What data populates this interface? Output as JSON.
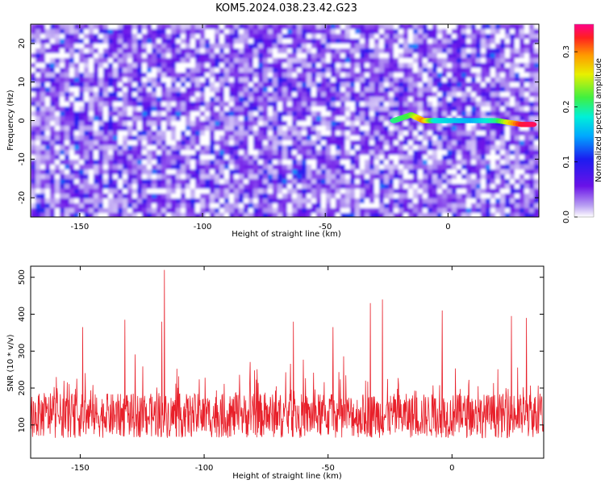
{
  "title": "KOM5.2024.038.23.42.G23",
  "chart_data": [
    {
      "type": "heatmap",
      "xlabel": "Height of straight line (km)",
      "ylabel": "Frequency (Hz)",
      "xlim": [
        -170,
        37
      ],
      "ylim": [
        -25,
        25
      ],
      "xticks": [
        -150,
        -100,
        -50,
        0
      ],
      "yticks": [
        -20,
        -10,
        0,
        10,
        20
      ],
      "colorbar": {
        "label": "Normalized spectral amplitude",
        "range": [
          0.0,
          0.35
        ],
        "ticks": [
          0.0,
          0.1,
          0.2,
          0.3
        ],
        "tick_labels": [
          "0.0",
          "0.1",
          "0.2",
          "0.3"
        ]
      },
      "trace": {
        "description_points_x": [
          -22,
          -15,
          -10,
          -5,
          0,
          10,
          20,
          30,
          35
        ],
        "description_points_y": [
          0,
          1.5,
          0,
          0,
          0,
          0,
          0,
          -1,
          -1
        ],
        "amplitudes": [
          0.2,
          0.22,
          0.3,
          0.18,
          0.17,
          0.15,
          0.2,
          0.33,
          0.34
        ]
      },
      "background_level": 0.05
    },
    {
      "type": "line",
      "xlabel": "Height of straight line (km)",
      "ylabel": "SNR (10 * v/v)",
      "xlim": [
        -170,
        37
      ],
      "ylim": [
        10,
        530
      ],
      "xticks": [
        -150,
        -100,
        -50,
        0
      ],
      "yticks": [
        100,
        200,
        300,
        400,
        500
      ],
      "series_color": "#e8202a",
      "baseline_mean": 125,
      "baseline_spread": 60,
      "peaks": [
        {
          "x": -116,
          "y": 520
        },
        {
          "x": -117,
          "y": 380
        },
        {
          "x": -28,
          "y": 440
        },
        {
          "x": -33,
          "y": 430
        },
        {
          "x": -4,
          "y": 410
        },
        {
          "x": -64,
          "y": 380
        },
        {
          "x": -132,
          "y": 385
        },
        {
          "x": 24,
          "y": 395
        },
        {
          "x": 30,
          "y": 390
        },
        {
          "x": -149,
          "y": 365
        },
        {
          "x": -48,
          "y": 365
        }
      ]
    }
  ]
}
